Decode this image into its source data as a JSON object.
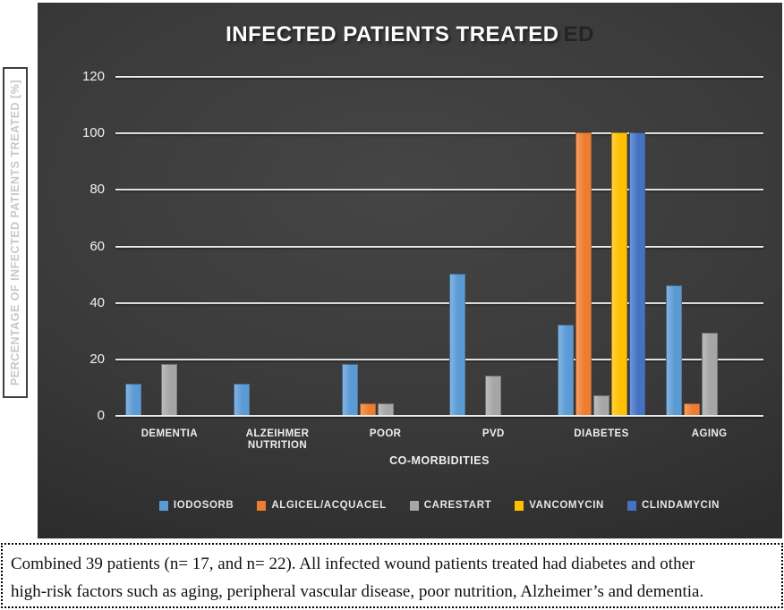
{
  "figure": {
    "title_ghost_suffix": "ED"
  },
  "chart_data": {
    "type": "bar",
    "title": "INFECTED PATIENTS TREATED",
    "xlabel": "CO-MORBIDITIES",
    "ylabel": "PERCENTAGE OF INFECTED PATIENTS TREATED [%]",
    "ylim": [
      0,
      120
    ],
    "yticks": [
      0,
      20,
      40,
      60,
      80,
      100,
      120
    ],
    "grid": true,
    "legend_position": "bottom",
    "categories": [
      "DEMENTIA",
      "ALZEIHMER NUTRITION",
      "POOR",
      "PVD",
      "DIABETES",
      "AGING"
    ],
    "category_label_lines": [
      [
        "DEMENTIA"
      ],
      [
        "ALZEIHMER",
        "NUTRITION"
      ],
      [
        "POOR"
      ],
      [
        "PVD"
      ],
      [
        "DIABETES"
      ],
      [
        "AGING"
      ]
    ],
    "series": [
      {
        "name": "IODOSORB",
        "color": "#5B9BD5",
        "values": [
          11,
          11,
          18,
          50,
          32,
          46
        ]
      },
      {
        "name": "ALGICEL/ACQUACEL",
        "color": "#ED7D31",
        "values": [
          0,
          0,
          4,
          0,
          100,
          4
        ]
      },
      {
        "name": "CARESTART",
        "color": "#A6A6A6",
        "values": [
          18,
          0,
          4,
          14,
          7,
          29
        ]
      },
      {
        "name": "VANCOMYCIN",
        "color": "#FFC000",
        "values": [
          0,
          0,
          0,
          0,
          100,
          0
        ]
      },
      {
        "name": "CLINDAMYCIN",
        "color": "#4472C4",
        "values": [
          0,
          0,
          0,
          0,
          100,
          0
        ]
      }
    ]
  },
  "caption": {
    "lines": [
      "Combined 39 patients (n= 17, and n= 22). All infected wound patients treated had diabetes and other",
      "high-risk factors such as aging, peripheral vascular disease, poor nutrition, Alzheimer’s and dementia."
    ]
  }
}
